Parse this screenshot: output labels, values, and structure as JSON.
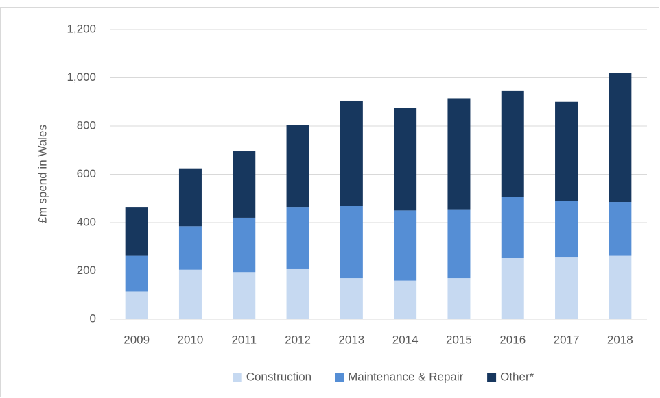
{
  "chart_data": {
    "type": "stacked_bar",
    "y_label": "£m spend in Wales",
    "categories": [
      "2009",
      "2010",
      "2011",
      "2012",
      "2013",
      "2014",
      "2015",
      "2016",
      "2017",
      "2018"
    ],
    "series": [
      {
        "name": "Construction",
        "color": "#c6d9f1",
        "values": [
          115,
          205,
          195,
          210,
          170,
          160,
          170,
          255,
          258,
          265
        ]
      },
      {
        "name": "Maintenance & Repair",
        "color": "#558ed5",
        "values": [
          150,
          180,
          225,
          255,
          300,
          290,
          285,
          250,
          232,
          220
        ]
      },
      {
        "name": "Other*",
        "color": "#17375e",
        "values": [
          200,
          240,
          275,
          340,
          435,
          425,
          460,
          440,
          410,
          535
        ]
      }
    ],
    "ylim": [
      0,
      1200
    ],
    "yticks": [
      0,
      200,
      400,
      600,
      800,
      {
        "value": 1000,
        "label": "1,000"
      },
      {
        "value": 1200,
        "label": "1,200"
      }
    ],
    "grid": true,
    "legend": "bottom"
  }
}
